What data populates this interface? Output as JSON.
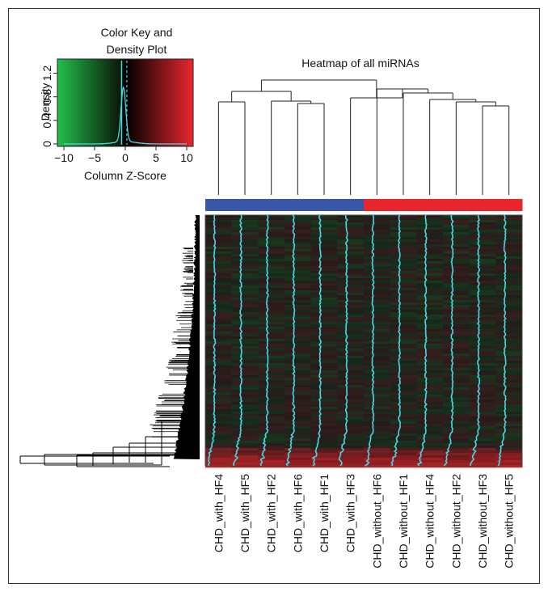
{
  "chart_data": {
    "type": "heatmap",
    "title": "Heatmap of all miRNAs",
    "columns": [
      "CHD_with_HF4",
      "CHD_with_HF5",
      "CHD_with_HF2",
      "CHD_with_HF6",
      "CHD_with_HF1",
      "CHD_with_HF3",
      "CHD_without_HF6",
      "CHD_without_HF1",
      "CHD_without_HF4",
      "CHD_without_HF2",
      "CHD_without_HF3",
      "CHD_without_HF5"
    ],
    "column_groups": [
      "blue",
      "blue",
      "blue",
      "blue",
      "blue",
      "blue",
      "red",
      "red",
      "red",
      "red",
      "red",
      "red"
    ],
    "group_colors": {
      "blue": "#3a56a8",
      "red": "#e8262e"
    },
    "trace_color": "#4fd6e6",
    "color_key": {
      "title": "Color Key and",
      "subtitle": "Density Plot",
      "xlabel": "Column Z-Score",
      "ylabel": "Density",
      "xticks": [
        "−10",
        "−5",
        "0",
        "5",
        "10"
      ],
      "yticks": [
        "0",
        "0.4",
        "0.8",
        "1.2"
      ],
      "xlim": [
        -10,
        10
      ],
      "ylim": [
        0,
        1.4
      ],
      "low_color": "#22c04a",
      "mid_color": "#000000",
      "high_color": "#e8262e"
    }
  }
}
